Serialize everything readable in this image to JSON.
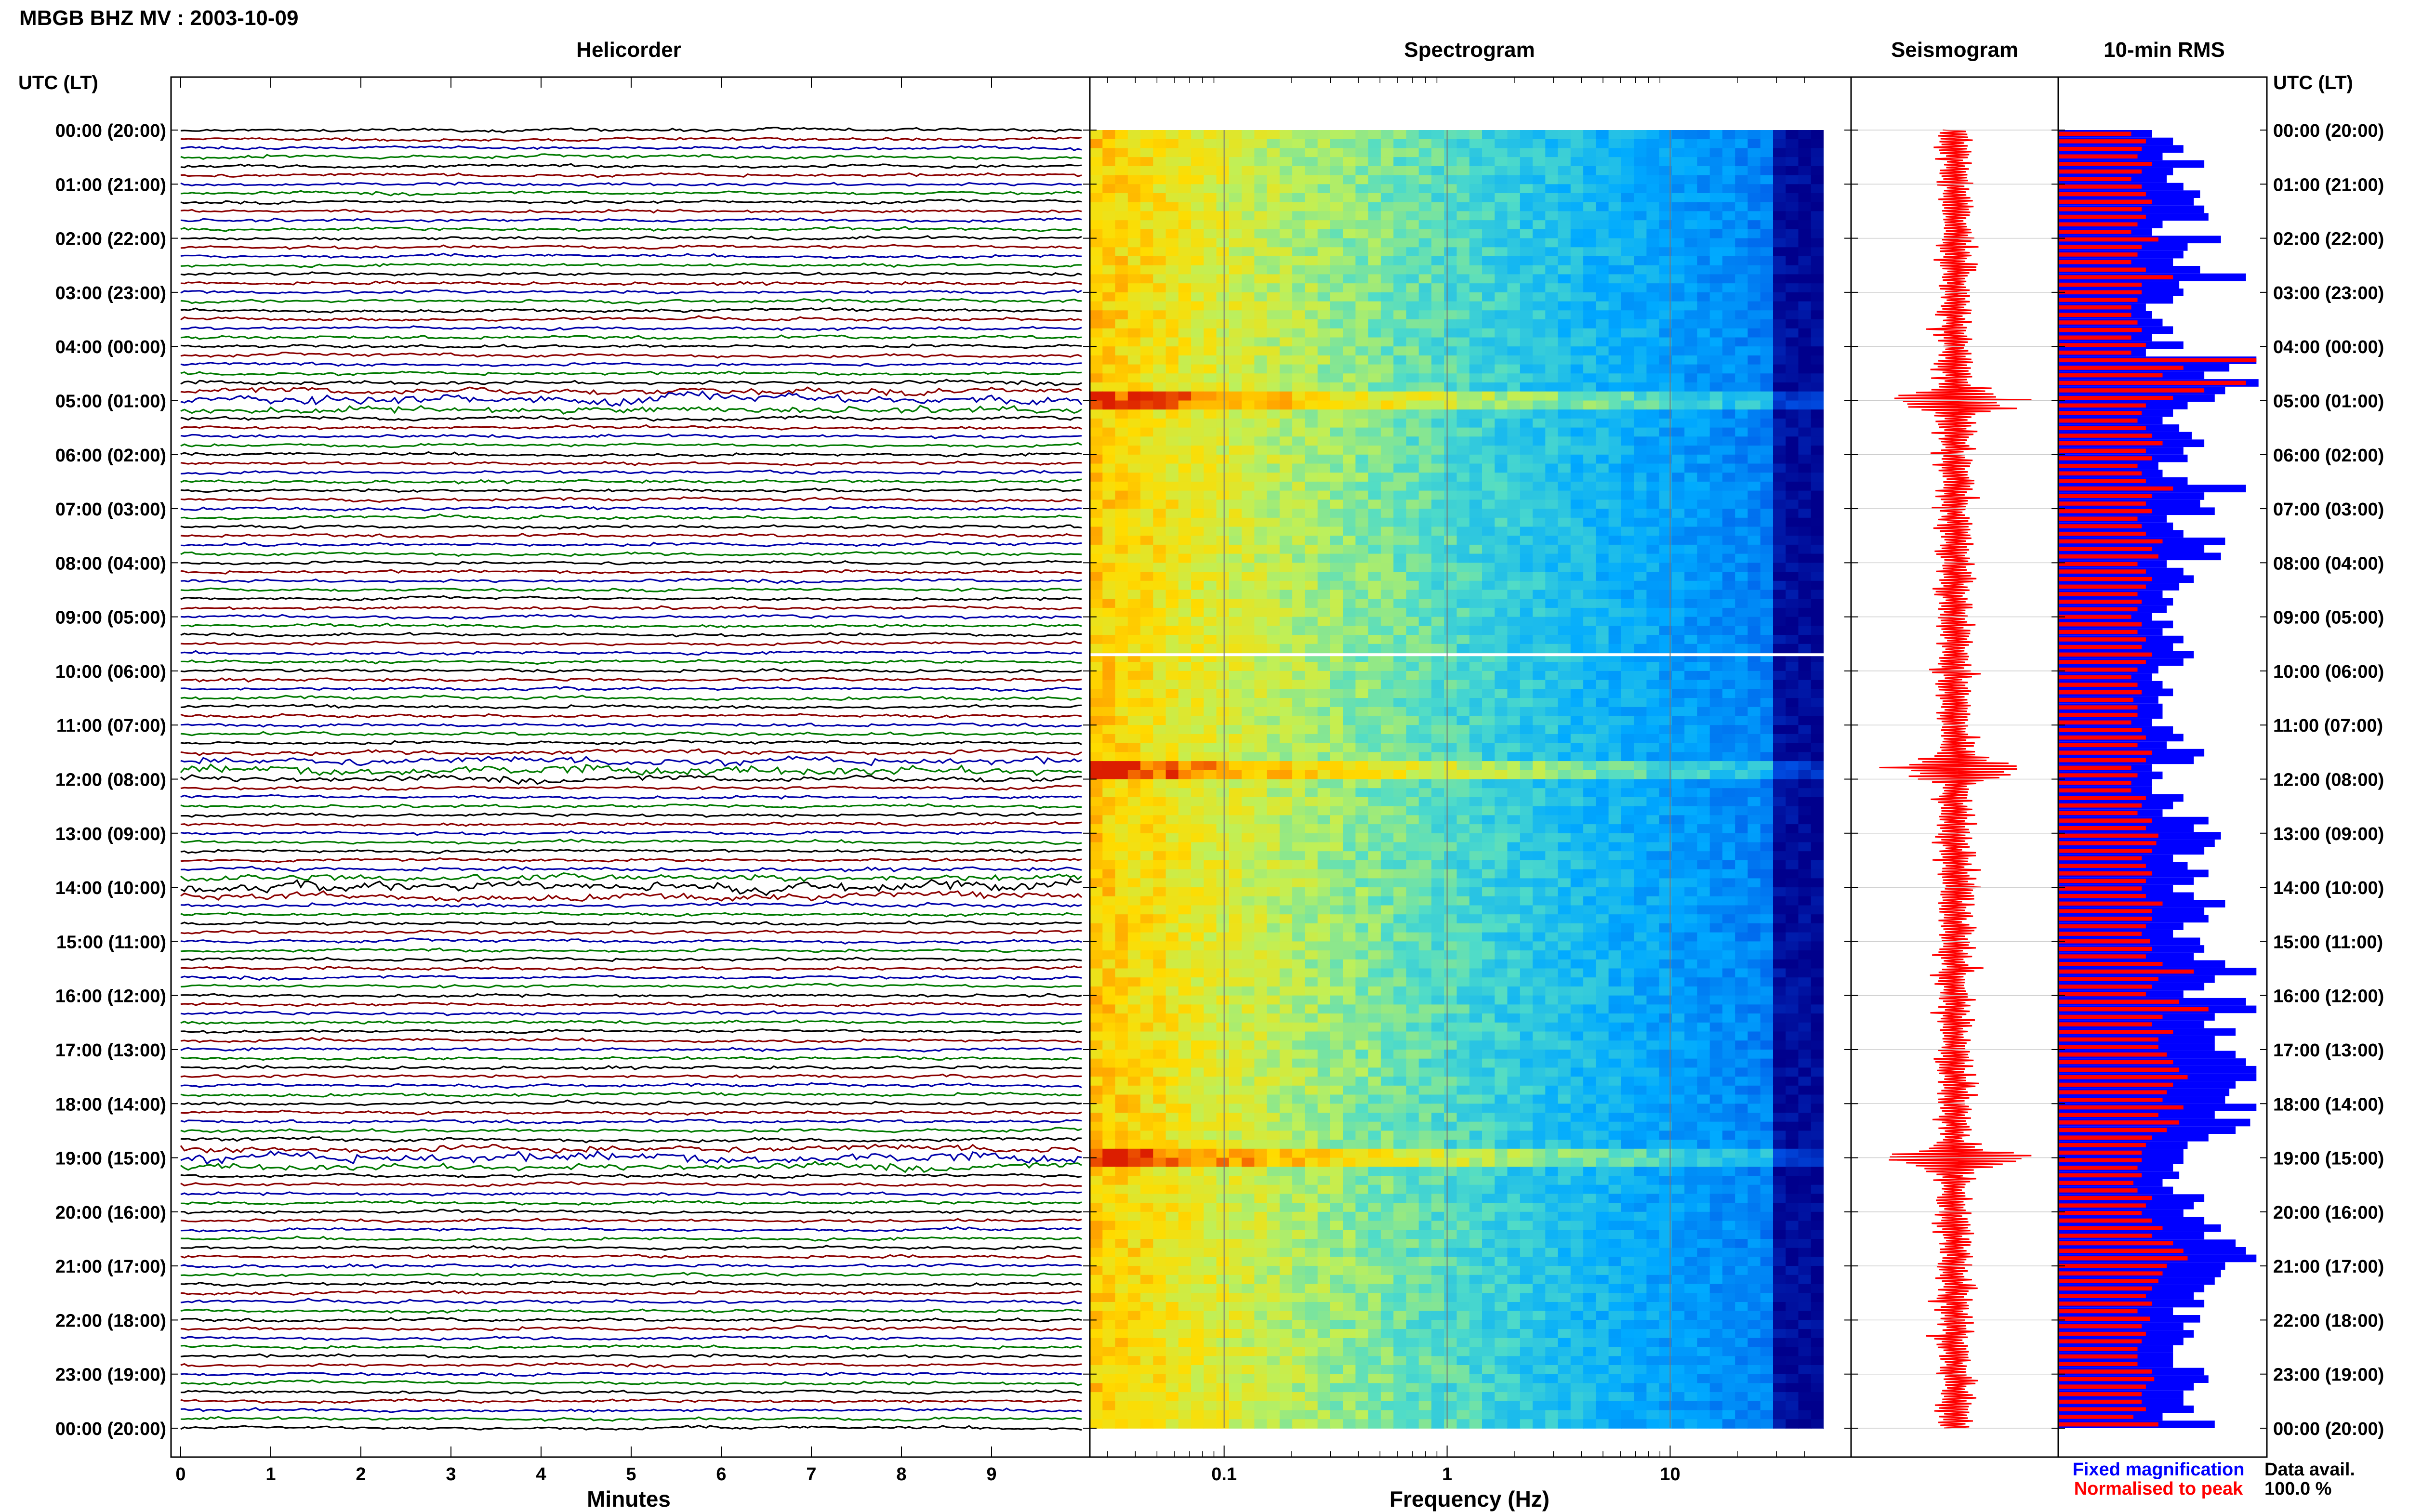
{
  "title": "MBGB BHZ MV : 2003-10-09",
  "time_axis_label": "UTC (LT)",
  "time_ticks": [
    "00:00 (20:00)",
    "01:00 (21:00)",
    "02:00 (22:00)",
    "03:00 (23:00)",
    "04:00 (00:00)",
    "05:00 (01:00)",
    "06:00 (02:00)",
    "07:00 (03:00)",
    "08:00 (04:00)",
    "09:00 (05:00)",
    "10:00 (06:00)",
    "11:00 (07:00)",
    "12:00 (08:00)",
    "13:00 (09:00)",
    "14:00 (10:00)",
    "15:00 (11:00)",
    "16:00 (12:00)",
    "17:00 (13:00)",
    "18:00 (14:00)",
    "19:00 (15:00)",
    "20:00 (16:00)",
    "21:00 (17:00)",
    "22:00 (18:00)",
    "23:00 (19:00)",
    "00:00 (20:00)"
  ],
  "panels": {
    "helicorder": "Helicorder",
    "spectrogram": "Spectrogram",
    "seismogram": "Seismogram",
    "rms": "10-min RMS"
  },
  "chart_data": [
    {
      "type": "line",
      "panel": "Helicorder",
      "xlabel": "Minutes",
      "x_ticks": [
        "0",
        "1",
        "2",
        "3",
        "4",
        "5",
        "6",
        "7",
        "8",
        "9"
      ],
      "xlim": [
        0,
        10
      ],
      "rows_per_hour": 6,
      "trace_colors": [
        "#000000",
        "#8b0000",
        "#0000aa",
        "#007a00"
      ],
      "event_hours": [
        5,
        11.8,
        14,
        19
      ]
    },
    {
      "type": "heatmap",
      "panel": "Spectrogram",
      "xlabel": "Frequency (Hz)",
      "x_ticks": [
        "0.1",
        "1",
        "10"
      ],
      "x_scale": "log",
      "xlim": [
        0.025,
        50
      ],
      "data_gap_hour": 9.7,
      "event_hours": [
        5,
        11.8,
        19
      ]
    },
    {
      "type": "line",
      "panel": "Seismogram",
      "color": "#ff0000",
      "event_hours": [
        5,
        11.8,
        19
      ]
    },
    {
      "type": "bar",
      "panel": "10-min RMS",
      "series": [
        {
          "name": "Fixed magnification",
          "color": "#0000ff",
          "values": [
            0.45,
            0.55,
            0.6,
            0.5,
            0.7,
            0.55,
            0.52,
            0.6,
            0.68,
            0.65,
            0.7,
            0.72,
            0.5,
            0.45,
            0.78,
            0.62,
            0.6,
            0.55,
            0.68,
            0.9,
            0.58,
            0.6,
            0.55,
            0.42,
            0.45,
            0.5,
            0.55,
            0.45,
            0.6,
            0.42,
            0.95,
            0.82,
            0.7,
            0.96,
            0.8,
            0.75,
            0.62,
            0.55,
            0.5,
            0.58,
            0.64,
            0.7,
            0.6,
            0.62,
            0.48,
            0.5,
            0.62,
            0.9,
            0.7,
            0.68,
            0.75,
            0.52,
            0.55,
            0.6,
            0.8,
            0.7,
            0.78,
            0.52,
            0.6,
            0.65,
            0.58,
            0.5,
            0.55,
            0.52,
            0.45,
            0.55,
            0.5,
            0.6,
            0.55,
            0.65,
            0.6,
            0.48,
            0.45,
            0.5,
            0.55,
            0.48,
            0.5,
            0.5,
            0.45,
            0.55,
            0.6,
            0.52,
            0.7,
            0.65,
            0.45,
            0.5,
            0.45,
            0.45,
            0.6,
            0.55,
            0.5,
            0.72,
            0.65,
            0.78,
            0.75,
            0.7,
            0.55,
            0.62,
            0.72,
            0.65,
            0.55,
            0.65,
            0.8,
            0.7,
            0.72,
            0.6,
            0.55,
            0.68,
            0.7,
            0.65,
            0.8,
            0.95,
            0.75,
            0.7,
            0.6,
            0.9,
            0.95,
            0.75,
            0.7,
            0.85,
            0.75,
            0.75,
            0.85,
            0.9,
            0.95,
            0.95,
            0.85,
            0.82,
            0.8,
            0.95,
            0.75,
            0.92,
            0.85,
            0.72,
            0.62,
            0.6,
            0.6,
            0.55,
            0.58,
            0.5,
            0.55,
            0.7,
            0.65,
            0.6,
            0.7,
            0.78,
            0.7,
            0.85,
            0.9,
            0.95,
            0.8,
            0.78,
            0.75,
            0.7,
            0.65,
            0.7,
            0.55,
            0.68,
            0.6,
            0.65,
            0.6,
            0.55,
            0.55,
            0.55,
            0.7,
            0.72,
            0.65,
            0.6,
            0.6,
            0.65,
            0.5,
            0.75
          ]
        },
        {
          "name": "Normalised to peak",
          "color": "#ff0000",
          "values": [
            0.35,
            0.42,
            0.4,
            0.38,
            0.45,
            0.4,
            0.35,
            0.4,
            0.42,
            0.45,
            0.4,
            0.42,
            0.38,
            0.35,
            0.48,
            0.4,
            0.38,
            0.35,
            0.42,
            0.55,
            0.4,
            0.4,
            0.38,
            0.35,
            0.35,
            0.38,
            0.4,
            0.35,
            0.42,
            0.35,
            0.95,
            0.6,
            0.5,
            0.9,
            0.7,
            0.55,
            0.42,
            0.4,
            0.38,
            0.42,
            0.45,
            0.5,
            0.42,
            0.45,
            0.38,
            0.4,
            0.42,
            0.55,
            0.45,
            0.42,
            0.45,
            0.38,
            0.4,
            0.42,
            0.5,
            0.45,
            0.48,
            0.38,
            0.42,
            0.45,
            0.42,
            0.38,
            0.4,
            0.38,
            0.35,
            0.4,
            0.38,
            0.42,
            0.4,
            0.45,
            0.42,
            0.38,
            0.35,
            0.38,
            0.4,
            0.36,
            0.38,
            0.38,
            0.35,
            0.4,
            0.42,
            0.38,
            0.45,
            0.42,
            0.35,
            0.38,
            0.35,
            0.35,
            0.42,
            0.4,
            0.38,
            0.45,
            0.42,
            0.48,
            0.47,
            0.45,
            0.4,
            0.42,
            0.45,
            0.42,
            0.4,
            0.42,
            0.5,
            0.45,
            0.45,
            0.42,
            0.4,
            0.44,
            0.45,
            0.42,
            0.5,
            0.65,
            0.48,
            0.45,
            0.42,
            0.58,
            0.72,
            0.5,
            0.45,
            0.55,
            0.48,
            0.48,
            0.52,
            0.55,
            0.58,
            0.62,
            0.55,
            0.52,
            0.5,
            0.6,
            0.48,
            0.58,
            0.52,
            0.45,
            0.42,
            0.4,
            0.4,
            0.38,
            0.4,
            0.36,
            0.38,
            0.45,
            0.42,
            0.4,
            0.45,
            0.5,
            0.45,
            0.55,
            0.6,
            0.62,
            0.52,
            0.5,
            0.48,
            0.45,
            0.42,
            0.45,
            0.38,
            0.44,
            0.4,
            0.42,
            0.4,
            0.38,
            0.38,
            0.38,
            0.45,
            0.46,
            0.42,
            0.4,
            0.4,
            0.42,
            0.36,
            0.48
          ]
        }
      ]
    }
  ],
  "legend": {
    "fixed": "Fixed magnification",
    "normalised": "Normalised to peak"
  },
  "data_avail": {
    "label": "Data avail.",
    "value": "100.0 %"
  },
  "colors": {
    "fixed": "#0000ff",
    "normalised": "#ff0000",
    "seismogram": "#ff0000",
    "spectrogram_low": "#00008b",
    "spectrogram_high": "#ff4500"
  }
}
